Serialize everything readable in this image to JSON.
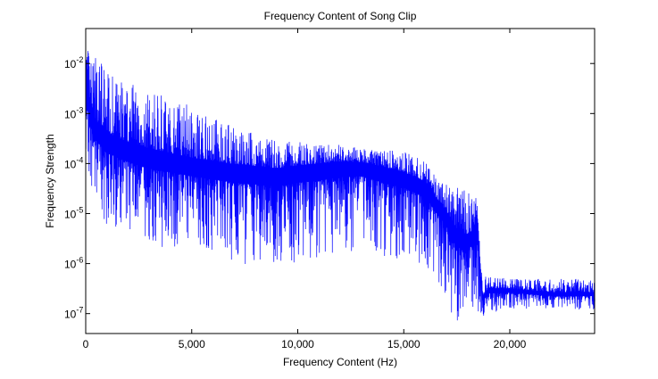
{
  "chart_data": {
    "type": "line",
    "title": "Frequency Content of Song Clip",
    "xlabel": "Frequency Content (Hz)",
    "ylabel": "Frequency Strength",
    "x_scale": "linear",
    "y_scale": "log",
    "xlim": [
      0,
      24000
    ],
    "ylim": [
      4e-08,
      0.05
    ],
    "x_ticks": [
      {
        "value": 0,
        "label": "0"
      },
      {
        "value": 5000,
        "label": "5,000"
      },
      {
        "value": 10000,
        "label": "10,000"
      },
      {
        "value": 15000,
        "label": "15,000"
      },
      {
        "value": 20000,
        "label": "20,000"
      }
    ],
    "y_ticks": [
      {
        "value": 1e-07,
        "base": "10",
        "exp": "-7"
      },
      {
        "value": 1e-06,
        "base": "10",
        "exp": "-6"
      },
      {
        "value": 1e-05,
        "base": "10",
        "exp": "-5"
      },
      {
        "value": 0.0001,
        "base": "10",
        "exp": "-4"
      },
      {
        "value": 0.001,
        "base": "10",
        "exp": "-3"
      },
      {
        "value": 0.01,
        "base": "10",
        "exp": "-2"
      }
    ],
    "grid": false,
    "series": [
      {
        "color": "#0000ff",
        "envelope": {
          "x": [
            0,
            200,
            500,
            1000,
            2000,
            3000,
            5000,
            7000,
            9000,
            10000,
            11000,
            12000,
            13000,
            14000,
            15000,
            16000,
            16500,
            17000,
            17500,
            18000,
            18500,
            18700,
            19000,
            20000,
            22000,
            24000
          ],
          "median": [
            0.003,
            0.001,
            0.0005,
            0.0003,
            0.0002,
            0.00015,
            0.0001,
            8e-05,
            7e-05,
            8e-05,
            9e-05,
            0.0001,
            0.0001,
            8e-05,
            6e-05,
            4e-05,
            2e-05,
            1e-05,
            4e-06,
            3e-06,
            5e-06,
            2e-07,
            3e-07,
            3e-07,
            2.5e-07,
            2.5e-07
          ],
          "upper": [
            0.05,
            0.02,
            0.015,
            0.008,
            0.004,
            0.003,
            0.0015,
            0.0006,
            0.0003,
            0.0003,
            0.00025,
            0.00025,
            0.0002,
            0.0002,
            0.00018,
            0.00012,
            6e-05,
            5e-05,
            4e-05,
            3e-05,
            3e-05,
            6e-07,
            6e-07,
            5e-07,
            5e-07,
            5e-07
          ],
          "lower": [
            0.0001,
            2e-05,
            1e-05,
            5e-06,
            3e-06,
            2e-06,
            2e-06,
            1e-06,
            7e-07,
            1e-06,
            1e-06,
            1.5e-06,
            2e-06,
            1e-06,
            1e-06,
            6e-07,
            3e-07,
            2e-07,
            5e-08,
            2e-07,
            7e-08,
            8e-08,
            1e-07,
            1.2e-07,
            1.2e-07,
            1.2e-07
          ]
        }
      }
    ]
  }
}
